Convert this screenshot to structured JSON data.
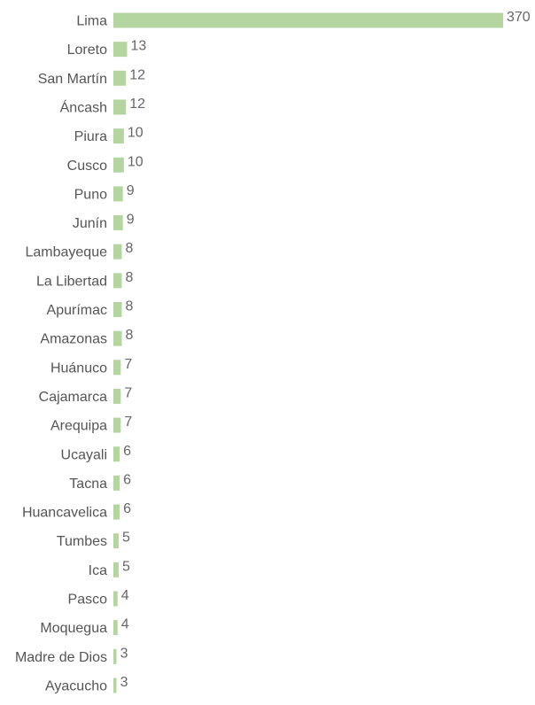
{
  "chart_data": {
    "type": "bar",
    "orientation": "horizontal",
    "categories": [
      "Lima",
      "Loreto",
      "San Martín",
      "Áncash",
      "Piura",
      "Cusco",
      "Puno",
      "Junín",
      "Lambayeque",
      "La Libertad",
      "Apurímac",
      "Amazonas",
      "Huánuco",
      "Cajamarca",
      "Arequipa",
      "Ucayali",
      "Tacna",
      "Huancavelica",
      "Tumbes",
      "Ica",
      "Pasco",
      "Moquegua",
      "Madre de Dios",
      "Ayacucho"
    ],
    "values": [
      370,
      13,
      12,
      12,
      10,
      10,
      9,
      9,
      8,
      8,
      8,
      8,
      7,
      7,
      7,
      6,
      6,
      6,
      5,
      5,
      4,
      4,
      3,
      3
    ],
    "title": "",
    "xlabel": "",
    "ylabel": "",
    "xlim": [
      0,
      370
    ],
    "grid": false,
    "legend": "none",
    "colors": {
      "bar": "#b5d5a0",
      "category_text": "#555555",
      "value_text": "#666666"
    }
  }
}
